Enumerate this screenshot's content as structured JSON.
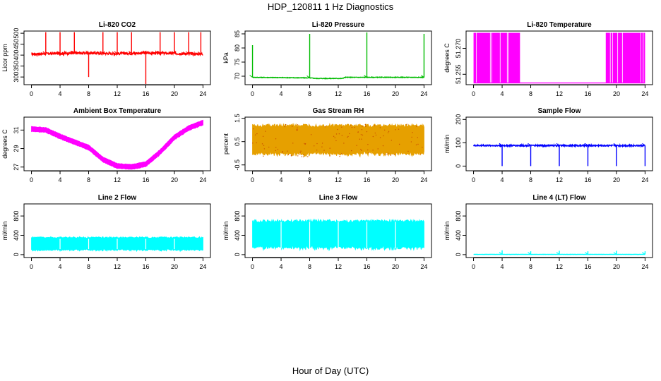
{
  "figure": {
    "title": "HDP_120811  1 Hz Diagnostics",
    "xlabel": "Hour of Day (UTC)"
  },
  "chart_data": [
    {
      "type": "line",
      "title": "Li-820 CO2",
      "ylabel": "Licor ppm",
      "color": "#ff0000",
      "xlim": [
        0,
        24
      ],
      "xticks": [
        0,
        4,
        8,
        12,
        16,
        20,
        24
      ],
      "ylim": [
        265,
        510
      ],
      "yticks": [
        300,
        350,
        400,
        450,
        500
      ],
      "baseline": [
        [
          0,
          405
        ],
        [
          4,
          408
        ],
        [
          8,
          410
        ],
        [
          12,
          407
        ],
        [
          16,
          410
        ],
        [
          20,
          408
        ],
        [
          24,
          405
        ]
      ],
      "noise": 6,
      "spikes": [
        [
          2,
          505
        ],
        [
          4,
          505
        ],
        [
          6,
          505
        ],
        [
          8,
          300
        ],
        [
          10,
          505
        ],
        [
          12,
          505
        ],
        [
          14,
          505
        ],
        [
          16,
          268
        ],
        [
          18,
          505
        ],
        [
          20,
          505
        ],
        [
          22,
          505
        ],
        [
          23.7,
          505
        ]
      ]
    },
    {
      "type": "line",
      "title": "Li-820 Pressure",
      "ylabel": "kPa",
      "color": "#00bb00",
      "xlim": [
        0,
        24
      ],
      "xticks": [
        0,
        4,
        8,
        12,
        16,
        20,
        24
      ],
      "ylim": [
        67,
        86
      ],
      "yticks": [
        70,
        75,
        80,
        85
      ],
      "baseline": [
        [
          0,
          69.6
        ],
        [
          8,
          69.4
        ],
        [
          9,
          69.2
        ],
        [
          12.5,
          69.2
        ],
        [
          13,
          69.6
        ],
        [
          24,
          69.6
        ]
      ],
      "noise": 0.1,
      "spikes": [
        [
          0,
          81
        ],
        [
          8,
          85
        ],
        [
          16,
          85.5
        ],
        [
          24,
          85
        ]
      ]
    },
    {
      "type": "band",
      "title": "Li-820 Temperature",
      "ylabel": "degrees C",
      "color": "#ff00ff",
      "xlim": [
        0,
        24
      ],
      "xticks": [
        0,
        4,
        8,
        12,
        16,
        20,
        24
      ],
      "ylim": [
        51.249,
        51.28
      ],
      "yticks": [
        51.255,
        51.27
      ],
      "yticklabels": [
        "51.255",
        "51.270"
      ],
      "low": 51.25,
      "high": 51.279,
      "active_segments": [
        [
          0,
          6.5
        ],
        [
          18.5,
          24
        ]
      ]
    },
    {
      "type": "band",
      "title": "Ambient Box Temperature",
      "ylabel": "degrees C",
      "color": "#ff00ff",
      "xlim": [
        0,
        24
      ],
      "xticks": [
        0,
        4,
        8,
        12,
        16,
        20,
        24
      ],
      "ylim": [
        26.6,
        32.4
      ],
      "yticks": [
        27,
        29,
        31
      ],
      "center": [
        [
          0,
          31.1
        ],
        [
          2,
          31.0
        ],
        [
          4,
          30.3
        ],
        [
          6,
          29.7
        ],
        [
          8,
          29.1
        ],
        [
          10,
          27.8
        ],
        [
          12,
          27.1
        ],
        [
          14,
          27.0
        ],
        [
          16,
          27.3
        ],
        [
          18,
          28.6
        ],
        [
          20,
          30.2
        ],
        [
          22,
          31.2
        ],
        [
          24,
          31.8
        ]
      ],
      "width": 0.6
    },
    {
      "type": "band",
      "title": "Gas Stream RH",
      "ylabel": "percent",
      "color": "#e6a000",
      "xlim": [
        0,
        24
      ],
      "xticks": [
        0,
        4,
        8,
        12,
        16,
        20,
        24
      ],
      "ylim": [
        -0.75,
        1.55
      ],
      "yticks": [
        -0.5,
        0.5,
        1.5
      ],
      "center": [
        [
          0,
          0.55
        ],
        [
          24,
          0.55
        ]
      ],
      "width": 1.4
    },
    {
      "type": "line",
      "title": "Sample Flow",
      "ylabel": "ml/min",
      "color": "#0000ff",
      "xlim": [
        0,
        24
      ],
      "xticks": [
        0,
        4,
        8,
        12,
        16,
        20,
        24
      ],
      "ylim": [
        -20,
        210
      ],
      "yticks": [
        0,
        100,
        200
      ],
      "baseline": [
        [
          0,
          88
        ],
        [
          24,
          88
        ]
      ],
      "noise": 3,
      "spikes": [
        [
          4,
          0
        ],
        [
          8,
          0
        ],
        [
          12,
          0
        ],
        [
          16,
          0
        ],
        [
          20,
          0
        ],
        [
          24,
          0
        ]
      ]
    },
    {
      "type": "band",
      "title": "Line 2 Flow",
      "ylabel": "ml/min",
      "color": "#00ffff",
      "xlim": [
        0,
        24
      ],
      "xticks": [
        0,
        4,
        8,
        12,
        16,
        20,
        24
      ],
      "ylim": [
        -60,
        1050
      ],
      "yticks": [
        0,
        400,
        800
      ],
      "center": [
        [
          0,
          220
        ],
        [
          24,
          220
        ]
      ],
      "width": 300,
      "gaps": [
        4,
        8,
        12,
        16,
        20
      ]
    },
    {
      "type": "band",
      "title": "Line 3 Flow",
      "ylabel": "ml/min",
      "color": "#00ffff",
      "xlim": [
        0,
        24
      ],
      "xticks": [
        0,
        4,
        8,
        12,
        16,
        20,
        24
      ],
      "ylim": [
        -60,
        1050
      ],
      "yticks": [
        0,
        400,
        800
      ],
      "center": [
        [
          0,
          405
        ],
        [
          24,
          405
        ]
      ],
      "width": 640,
      "gaps": [
        4,
        8,
        12,
        16,
        20
      ]
    },
    {
      "type": "line",
      "title": "Line 4 (LT) Flow",
      "ylabel": "ml/min",
      "color": "#00ffff",
      "xlim": [
        0,
        24
      ],
      "xticks": [
        0,
        4,
        8,
        12,
        16,
        20,
        24
      ],
      "ylim": [
        -60,
        1050
      ],
      "yticks": [
        0,
        400,
        800
      ],
      "baseline": [
        [
          0,
          5
        ],
        [
          24,
          5
        ]
      ],
      "noise": 2,
      "spikes": [
        [
          4,
          90
        ],
        [
          8,
          70
        ],
        [
          12,
          80
        ],
        [
          16,
          70
        ],
        [
          20,
          80
        ],
        [
          24,
          70
        ]
      ]
    }
  ]
}
